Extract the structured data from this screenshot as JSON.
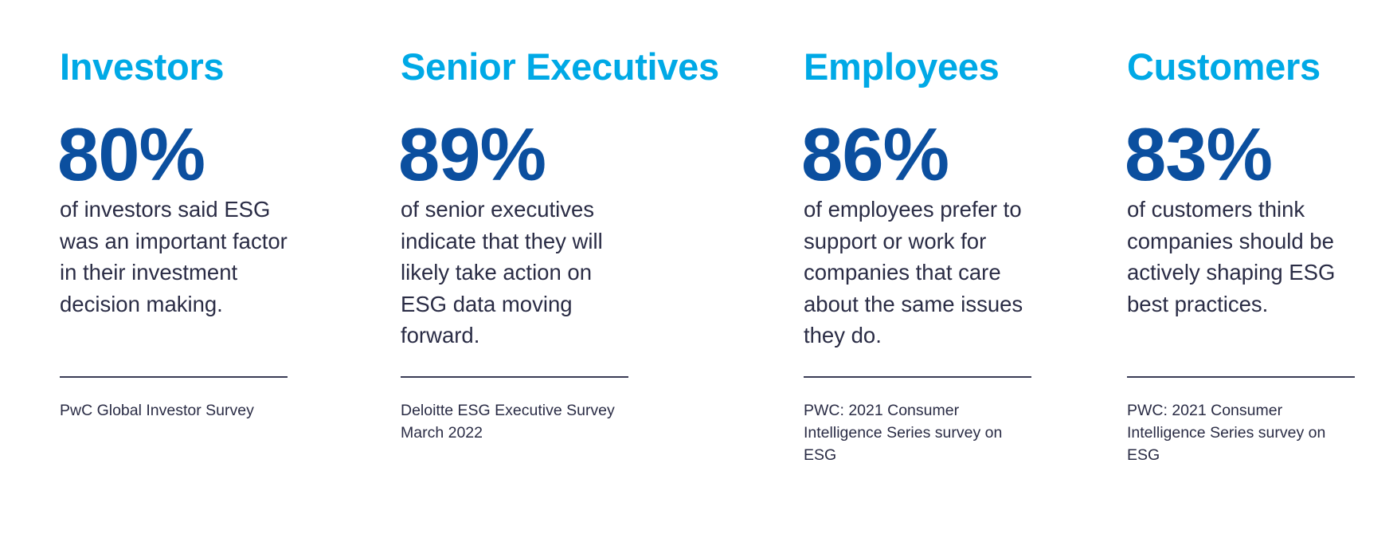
{
  "colors": {
    "heading": "#00a9e6",
    "percent": "#0b4f9f",
    "text": "#2a2c45"
  },
  "stats": [
    {
      "heading": "Investors",
      "percent": "80%",
      "description": "of investors said ESG was an important factor in their investment decision making.",
      "source": "PwC Global Investor Survey"
    },
    {
      "heading": "Senior Executives",
      "percent": "89%",
      "description": "of senior executives indicate that they will likely take action on ESG data moving forward.",
      "source": "Deloitte ESG Executive Survey March 2022"
    },
    {
      "heading": "Employees",
      "percent": "86%",
      "description": "of employees prefer to support or work for companies that care about the same issues they do.",
      "source": "PWC: 2021 Consumer Intelligence Series survey on ESG"
    },
    {
      "heading": "Customers",
      "percent": "83%",
      "description": "of customers think companies should be actively shaping ESG best practices.",
      "source": "PWC: 2021 Consumer Intelligence Series survey on ESG"
    }
  ]
}
